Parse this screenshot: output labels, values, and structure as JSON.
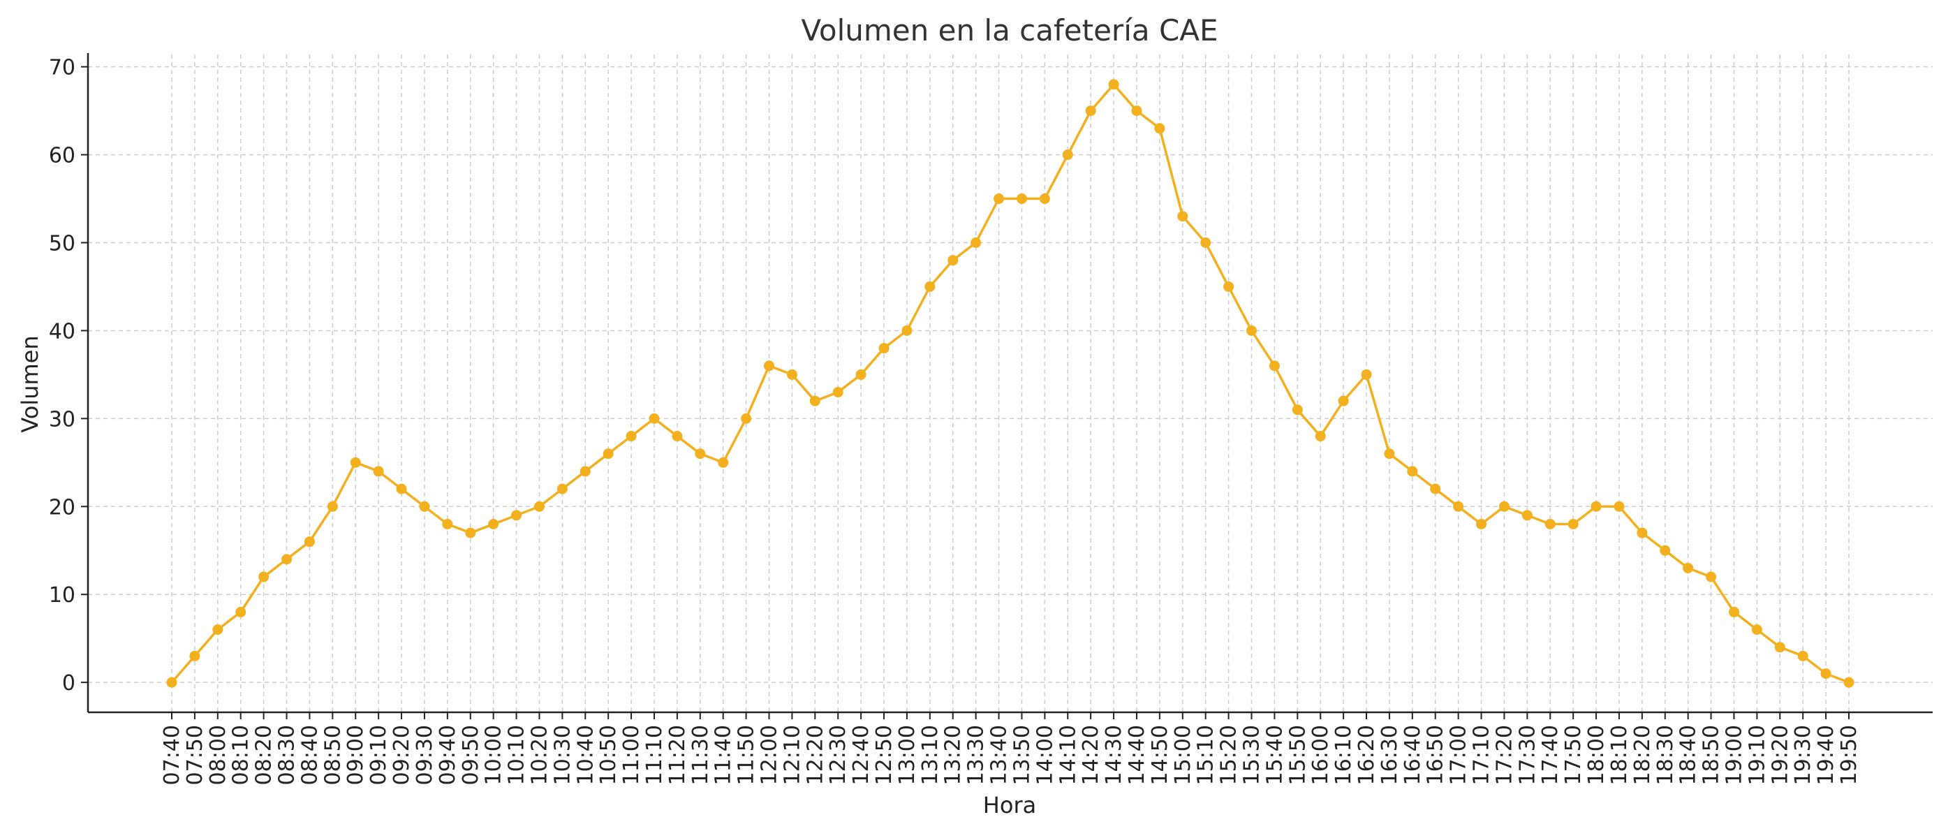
{
  "chart_data": {
    "type": "line",
    "title": "Volumen en la cafetería CAE",
    "xlabel": "Hora",
    "ylabel": "Volumen",
    "ylim": [
      -3.4,
      71.4
    ],
    "yticks": [
      0,
      10,
      20,
      30,
      40,
      50,
      60,
      70
    ],
    "grid": true,
    "categories": [
      "07:40",
      "07:50",
      "08:00",
      "08:10",
      "08:20",
      "08:30",
      "08:40",
      "08:50",
      "09:00",
      "09:10",
      "09:20",
      "09:30",
      "09:40",
      "09:50",
      "10:00",
      "10:10",
      "10:20",
      "10:30",
      "10:40",
      "10:50",
      "11:00",
      "11:10",
      "11:20",
      "11:30",
      "11:40",
      "11:50",
      "12:00",
      "12:10",
      "12:20",
      "12:30",
      "12:40",
      "12:50",
      "13:00",
      "13:10",
      "13:20",
      "13:30",
      "13:40",
      "13:50",
      "14:00",
      "14:10",
      "14:20",
      "14:30",
      "14:40",
      "14:50",
      "15:00",
      "15:10",
      "15:20",
      "15:30",
      "15:40",
      "15:50",
      "16:00",
      "16:10",
      "16:20",
      "16:30",
      "16:40",
      "16:50",
      "17:00",
      "17:10",
      "17:20",
      "17:30",
      "17:40",
      "17:50",
      "18:00",
      "18:10",
      "18:20",
      "18:30",
      "18:40",
      "18:50",
      "19:00",
      "19:10",
      "19:20",
      "19:30",
      "19:40",
      "19:50"
    ],
    "series": [
      {
        "color": "#f2b01e",
        "values": [
          0,
          3,
          6,
          8,
          12,
          14,
          16,
          20,
          25,
          24,
          22,
          20,
          18,
          17,
          18,
          19,
          20,
          22,
          24,
          26,
          28,
          30,
          28,
          26,
          25,
          30,
          36,
          35,
          32,
          33,
          35,
          38,
          40,
          45,
          48,
          50,
          55,
          55,
          55,
          60,
          65,
          68,
          65,
          63,
          53,
          50,
          45,
          40,
          36,
          31,
          28,
          32,
          35,
          26,
          24,
          22,
          20,
          18,
          20,
          19,
          18,
          18,
          20,
          20,
          17,
          15,
          13,
          12,
          8,
          6,
          4,
          3,
          1,
          0
        ]
      }
    ]
  }
}
